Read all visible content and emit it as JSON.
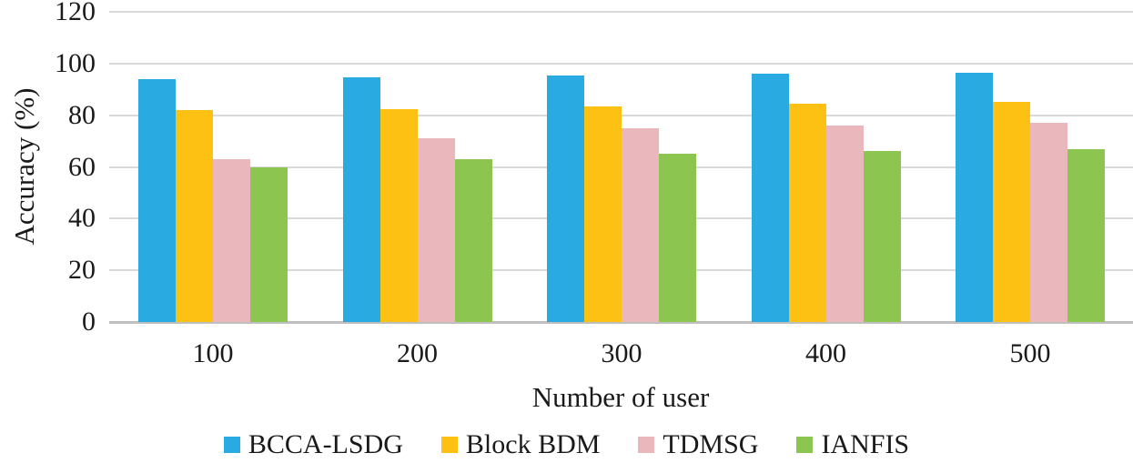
{
  "chart_data": {
    "type": "bar",
    "title": "",
    "xlabel": "Number of user",
    "ylabel": "Accuracy (%)",
    "categories": [
      "100",
      "200",
      "300",
      "400",
      "500"
    ],
    "series": [
      {
        "name": "BCCA-LSDG",
        "color": "#29abe2",
        "values": [
          94,
          94.5,
          95.5,
          96,
          96.5
        ]
      },
      {
        "name": "Block BDM",
        "color": "#fdc113",
        "values": [
          82,
          82.5,
          83.5,
          84.5,
          85
        ]
      },
      {
        "name": "TDMSG",
        "color": "#eab8bc",
        "values": [
          63,
          71,
          75,
          76,
          77
        ]
      },
      {
        "name": "IANFIS",
        "color": "#8cc650",
        "values": [
          60,
          63,
          65,
          66,
          67
        ]
      }
    ],
    "ylim": [
      0,
      120
    ],
    "ytick_step": 20,
    "yticks": [
      "0",
      "20",
      "40",
      "60",
      "80",
      "100",
      "120"
    ],
    "grid": true,
    "legend_position": "bottom",
    "colors": {
      "gridline": "#d9d9d9",
      "baseline": "#bfbfbf",
      "text": "#1a1a1a"
    }
  }
}
